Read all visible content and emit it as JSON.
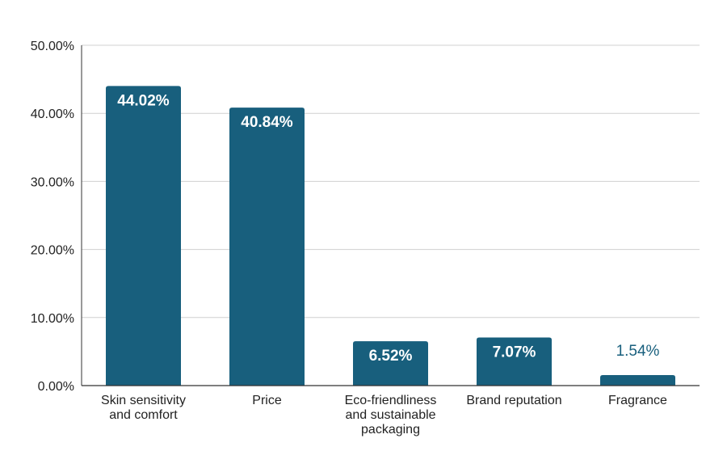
{
  "chart_data": {
    "type": "bar",
    "categories": [
      [
        "Skin sensitivity",
        "and comfort"
      ],
      [
        "Price"
      ],
      [
        "Eco-friendliness",
        "and sustainable",
        "packaging"
      ],
      [
        "Brand reputation"
      ],
      [
        "Fragrance"
      ]
    ],
    "values": [
      44.02,
      40.84,
      6.52,
      7.07,
      1.54
    ],
    "data_labels": [
      "44.02%",
      "40.84%",
      "6.52%",
      "7.07%",
      "1.54%"
    ],
    "ylim": [
      0,
      50
    ],
    "yticks": [
      0,
      10,
      20,
      30,
      40,
      50
    ],
    "ytick_labels": [
      "0.00%",
      "10.00%",
      "20.00%",
      "30.00%",
      "40.00%",
      "50.00%"
    ],
    "grid": true,
    "legend": "none",
    "colors": {
      "bar": "#185f7d",
      "label_inside": "#ffffff",
      "label_outside": "#185f7d",
      "grid": "#d0d0d0",
      "axis": "#333333"
    }
  }
}
